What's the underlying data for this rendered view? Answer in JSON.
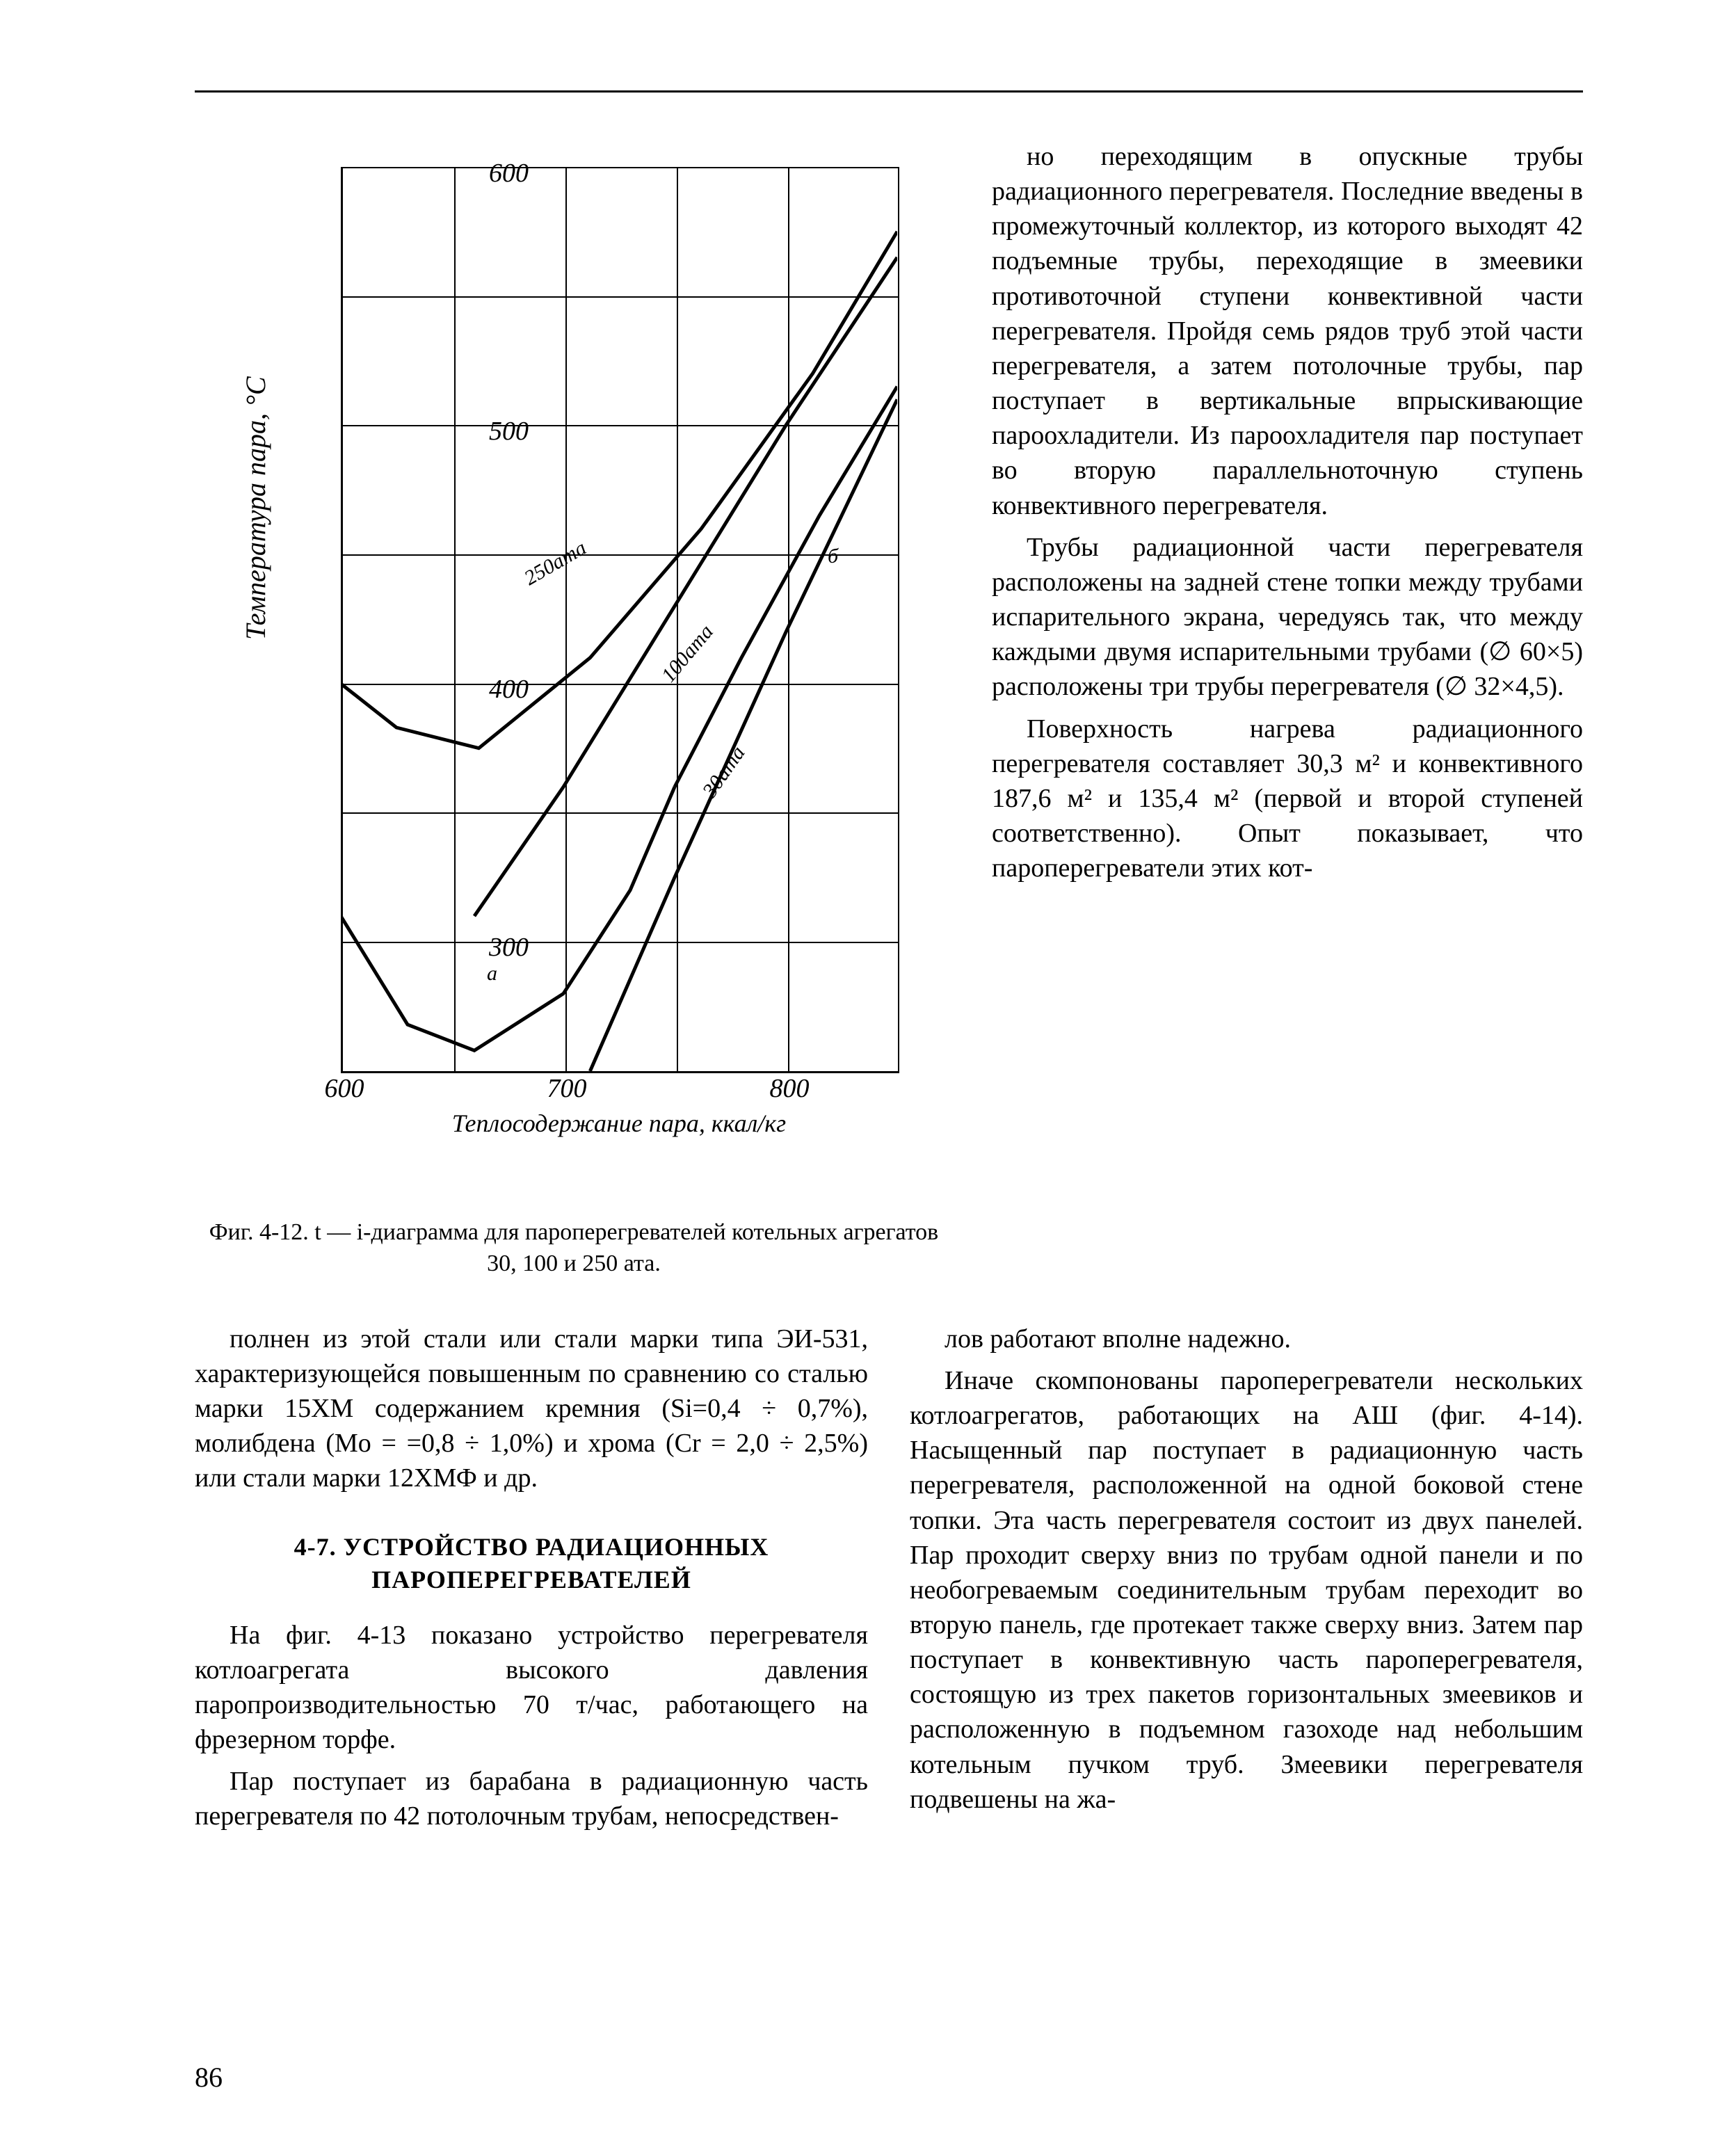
{
  "chart": {
    "type": "line",
    "background_color": "#ffffff",
    "grid_color": "#000000",
    "line_color": "#000000",
    "line_width": 5,
    "x_axis": {
      "label": "Теплосодержание пара, ккал/кг",
      "min": 600,
      "max": 850,
      "tick_step": 100,
      "ticks": [
        "600",
        "700",
        "800"
      ]
    },
    "y_axis": {
      "label": "Температура пара, °C",
      "min": 250,
      "max": 600,
      "tick_step": 100,
      "ticks": [
        "300",
        "400",
        "500",
        "600"
      ]
    },
    "curves": {
      "250ama": {
        "label": "250ата",
        "points_x": [
          600,
          625,
          662,
          712,
          762,
          812,
          850
        ],
        "points_y": [
          400,
          383,
          375,
          410,
          460,
          520,
          575
        ]
      },
      "100ama": {
        "label": "100ата",
        "points_x": [
          660,
          700,
          750,
          800,
          850
        ],
        "points_y": [
          310,
          360,
          430,
          500,
          565
        ]
      },
      "30ama": {
        "label": "30ата",
        "points_x": [
          712,
          750,
          800,
          850
        ],
        "points_y": [
          250,
          325,
          420,
          510
        ]
      }
    },
    "boundary_a": {
      "points_x": [
        600,
        630,
        660,
        700,
        730,
        750
      ],
      "points_y": [
        310,
        268,
        258,
        280,
        320,
        360
      ]
    },
    "boundary_b": {
      "points_x": [
        750,
        780,
        815,
        850
      ],
      "points_y": [
        360,
        410,
        465,
        515
      ]
    },
    "marker_a": "а",
    "marker_b": "б"
  },
  "caption": "Фиг. 4-12. t — i-диаграмма для пароперегревателей котельных агрегатов 30, 100 и 250 ата.",
  "right_paragraphs": [
    "но переходящим в опускные трубы радиационного перегревателя. Последние введены в промежуточный коллектор, из которого выходят 42 подъемные трубы, переходящие в змеевики противоточной ступени конвективной части перегревателя. Пройдя семь рядов труб этой части перегревателя, а затем потолочные трубы, пар поступает в вертикальные впрыскивающие пароохладители. Из пароохладителя пар поступает во вторую параллельноточную ступень конвективного перегревателя.",
    "Трубы радиационной части перегревателя расположены на задней стене топки между трубами испарительного экрана, чередуясь так, что между каждыми двумя испарительными трубами (∅ 60×5) расположены три трубы перегревателя (∅ 32×4,5).",
    "Поверхность нагрева радиационного перегревателя составляет 30,3 м² и конвективного 187,6 м² и 135,4 м² (первой и второй ступеней соответственно). Опыт показывает, что пароперегреватели этих кот-"
  ],
  "bottom": {
    "p1": "полнен из этой стали или стали марки типа ЭИ-531, характеризующейся повышенным по сравнению со сталью марки 15ХМ содержанием кремния (Si=0,4 ÷ 0,7%), молибдена (Mo = =0,8 ÷ 1,0%) и хрома (Cr = 2,0 ÷ 2,5%) или стали марки 12ХМФ и др.",
    "section": "4-7. УСТРОЙСТВО РАДИАЦИОННЫХ ПАРОПЕРЕГРЕВАТЕЛЕЙ",
    "p2": "На фиг. 4-13 показано устройство перегревателя котлоагрегата высокого давления паропроизводительностью 70 т/час, работающего на фрезерном торфе.",
    "p3": "Пар поступает из барабана в радиационную часть перегревателя по 42 потолочным трубам, непосредствен-",
    "p4": "лов работают вполне надежно.",
    "p5": "Иначе скомпонованы пароперегреватели нескольких котлоагрегатов, работающих на АШ (фиг. 4-14). Насыщенный пар поступает в радиационную часть перегревателя, расположенной на одной боковой стене топки. Эта часть перегревателя состоит из двух панелей. Пар проходит сверху вниз по трубам одной панели и по необогреваемым соединительным трубам переходит во вторую панель, где протекает также сверху вниз. Затем пар поступает в конвективную часть пароперегревателя, состоящую из трех пакетов горизонтальных змеевиков и расположенную в подъемном газоходе над небольшим котельным пучком труб. Змеевики перегревателя подвешены на жа-"
  },
  "page_number": "86"
}
